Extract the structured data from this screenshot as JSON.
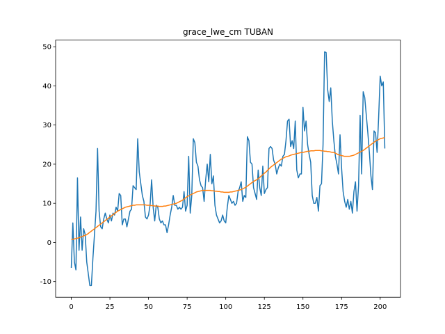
{
  "chart_data": {
    "type": "line",
    "title": "grace_lwe_cm TUBAN",
    "x": [
      0,
      1,
      2,
      3,
      4,
      5,
      6,
      7,
      8,
      9,
      10,
      11,
      12,
      13,
      14,
      15,
      16,
      17,
      18,
      19,
      20,
      21,
      22,
      23,
      24,
      25,
      26,
      27,
      28,
      29,
      30,
      31,
      32,
      33,
      34,
      35,
      36,
      37,
      38,
      39,
      40,
      41,
      42,
      43,
      44,
      45,
      46,
      47,
      48,
      49,
      50,
      51,
      52,
      53,
      54,
      55,
      56,
      57,
      58,
      59,
      60,
      61,
      62,
      63,
      64,
      65,
      66,
      67,
      68,
      69,
      70,
      71,
      72,
      73,
      74,
      75,
      76,
      77,
      78,
      79,
      80,
      81,
      82,
      83,
      84,
      85,
      86,
      87,
      88,
      89,
      90,
      91,
      92,
      93,
      94,
      95,
      96,
      97,
      98,
      99,
      100,
      101,
      102,
      103,
      104,
      105,
      106,
      107,
      108,
      109,
      110,
      111,
      112,
      113,
      114,
      115,
      116,
      117,
      118,
      119,
      120,
      121,
      122,
      123,
      124,
      125,
      126,
      127,
      128,
      129,
      130,
      131,
      132,
      133,
      134,
      135,
      136,
      137,
      138,
      139,
      140,
      141,
      142,
      143,
      144,
      145,
      146,
      147,
      148,
      149,
      150,
      151,
      152,
      153,
      154,
      155,
      156,
      157,
      158,
      159,
      160,
      161,
      162,
      163,
      164,
      165,
      166,
      167,
      168,
      169,
      170,
      171,
      172,
      173,
      174,
      175,
      176,
      177,
      178,
      179,
      180,
      181,
      182,
      183,
      184,
      185,
      186,
      187,
      188,
      189,
      190,
      191,
      192,
      193,
      194,
      195,
      196,
      197,
      198,
      199,
      200,
      201,
      202,
      203
    ],
    "series": [
      {
        "color": "#1f77b4",
        "values": [
          -6.5,
          5,
          -5,
          -7,
          16.5,
          -2,
          6.5,
          -2,
          3.5,
          2,
          -5,
          -8,
          -11,
          -11,
          -4,
          2,
          8,
          24,
          8,
          4,
          3.5,
          6,
          7.5,
          6,
          5,
          7,
          5.5,
          7.5,
          7,
          9,
          8,
          12.5,
          12,
          4.5,
          6,
          6,
          4,
          6,
          8,
          8.5,
          14.5,
          14,
          13.5,
          26.5,
          18,
          15,
          12,
          10.5,
          6.5,
          6,
          7,
          9.5,
          16,
          9,
          5.5,
          9.5,
          9,
          6,
          5,
          5.5,
          4.5,
          4.5,
          2.5,
          4.5,
          7,
          9,
          12,
          9.5,
          9.5,
          8.5,
          9,
          8.5,
          9,
          13,
          8,
          9.5,
          22,
          7.5,
          12,
          26.5,
          25.5,
          20.5,
          19.5,
          16,
          14.5,
          14,
          10.5,
          16,
          20,
          15.5,
          22.5,
          15,
          17,
          9.5,
          7,
          6,
          5,
          5.5,
          7,
          5.5,
          5,
          9,
          12,
          11,
          10,
          10.5,
          9.5,
          10,
          13,
          14,
          15.5,
          10.5,
          12,
          11.5,
          27,
          26,
          20.5,
          20,
          14,
          12.5,
          11,
          18.5,
          14,
          12,
          19.5,
          12.5,
          13.5,
          14,
          24,
          24.5,
          24,
          21,
          20,
          17.5,
          19,
          20,
          19.5,
          22,
          22.5,
          26,
          31,
          31.5,
          24.5,
          26,
          24,
          31,
          18.5,
          16.5,
          17.5,
          17.5,
          34.5,
          28.5,
          31,
          25,
          22.5,
          20.5,
          12,
          10,
          10,
          11.5,
          8,
          14.5,
          15,
          25,
          48.7,
          48.5,
          39,
          36,
          39.5,
          31,
          26,
          22,
          20,
          17.5,
          27.5,
          19,
          13,
          10.5,
          9,
          11,
          8.5,
          10.5,
          7.5,
          13,
          15.5,
          8,
          14.5,
          32.5,
          17.5,
          38.5,
          37,
          32.5,
          28,
          23,
          17,
          13.5,
          28.5,
          28,
          23,
          32,
          42.5,
          40,
          41,
          24
        ]
      },
      {
        "color": "#ff7f0e",
        "values": [
          0.8,
          0.8,
          0.9,
          1.0,
          1.1,
          1.2,
          1.4,
          1.5,
          1.7,
          1.8,
          2.0,
          2.3,
          2.6,
          2.9,
          3.2,
          3.5,
          3.8,
          4.1,
          4.4,
          4.7,
          5.0,
          5.3,
          5.6,
          5.9,
          6.2,
          6.5,
          6.8,
          7.1,
          7.4,
          7.7,
          8.0,
          8.2,
          8.4,
          8.6,
          8.8,
          9.0,
          9.1,
          9.2,
          9.3,
          9.4,
          9.5,
          9.5,
          9.6,
          9.6,
          9.6,
          9.6,
          9.6,
          9.6,
          9.6,
          9.5,
          9.5,
          9.5,
          9.4,
          9.4,
          9.3,
          9.3,
          9.3,
          9.2,
          9.2,
          9.2,
          9.3,
          9.3,
          9.4,
          9.5,
          9.6,
          9.7,
          9.8,
          9.9,
          10.0,
          10.2,
          10.4,
          10.6,
          10.8,
          11.1,
          11.4,
          11.7,
          11.9,
          12.1,
          12.3,
          12.5,
          12.7,
          12.9,
          13.0,
          13.1,
          13.2,
          13.3,
          13.3,
          13.3,
          13.3,
          13.3,
          13.3,
          13.2,
          13.2,
          13.1,
          13.1,
          13.0,
          13.0,
          12.9,
          12.9,
          12.8,
          12.8,
          12.8,
          12.8,
          12.9,
          12.9,
          13.0,
          13.1,
          13.2,
          13.3,
          13.4,
          13.5,
          13.7,
          13.9,
          14.1,
          14.4,
          14.7,
          15.0,
          15.3,
          15.6,
          15.8,
          16.0,
          16.3,
          16.6,
          17.0,
          17.3,
          17.7,
          18.0,
          18.4,
          18.8,
          19.2,
          19.5,
          19.8,
          20.1,
          20.4,
          20.7,
          21.0,
          21.3,
          21.5,
          21.7,
          21.9,
          22.0,
          22.1,
          22.3,
          22.4,
          22.5,
          22.6,
          22.7,
          22.8,
          22.9,
          23.0,
          23.0,
          23.1,
          23.2,
          23.3,
          23.3,
          23.4,
          23.4,
          23.4,
          23.5,
          23.5,
          23.5,
          23.5,
          23.4,
          23.4,
          23.3,
          23.3,
          23.2,
          23.2,
          23.1,
          23.0,
          23.0,
          22.8,
          22.6,
          22.4,
          22.3,
          22.2,
          22.1,
          22.0,
          22.0,
          22.0,
          22.0,
          22.1,
          22.2,
          22.3,
          22.5,
          22.7,
          22.9,
          23.1,
          23.3,
          23.5,
          23.8,
          24.1,
          24.4,
          24.7,
          25.0,
          25.3,
          25.6,
          25.9,
          26.1,
          26.3,
          26.5,
          26.6,
          26.7,
          26.8
        ]
      }
    ],
    "xlim": [
      -10.15,
      213.15
    ],
    "xticks": [
      0,
      25,
      50,
      75,
      100,
      125,
      150,
      175,
      200
    ],
    "ylim": [
      -14,
      51.7
    ],
    "yticks": [
      -10,
      0,
      10,
      20,
      30,
      40,
      50
    ]
  }
}
